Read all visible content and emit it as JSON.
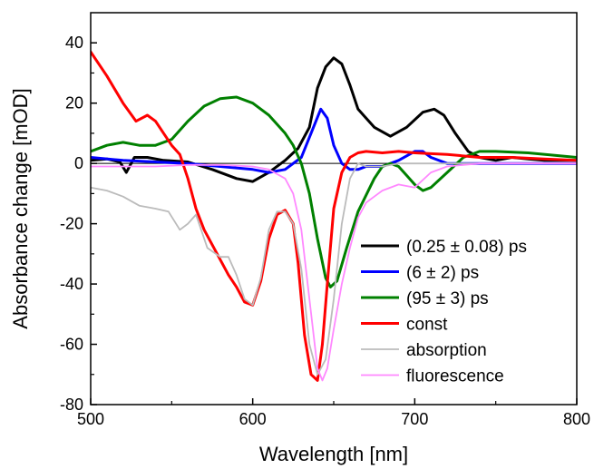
{
  "chart_data": {
    "type": "line",
    "xlabel": "Wavelength [nm]",
    "ylabel": "Absorbance change [mOD]",
    "xlim": [
      500,
      800
    ],
    "ylim": [
      -80,
      50
    ],
    "xticks": [
      500,
      600,
      700,
      800
    ],
    "xtick_labels": [
      "500",
      "600",
      "700",
      "800"
    ],
    "yticks": [
      -80,
      -60,
      -40,
      -20,
      0,
      20,
      40
    ],
    "ytick_labels": [
      "-80",
      "-60",
      "-40",
      "-20",
      "0",
      "20",
      "40"
    ],
    "zero_line": true,
    "grid": false,
    "legend_position": "bottom-right",
    "series": [
      {
        "name": "(0.25 ± 0.08) ps",
        "color": "#000000",
        "x": [
          500,
          510,
          518,
          522,
          527,
          535,
          545,
          560,
          575,
          590,
          600,
          610,
          620,
          628,
          635,
          640,
          645,
          650,
          655,
          660,
          665,
          675,
          685,
          695,
          705,
          712,
          718,
          725,
          733,
          740,
          750,
          760,
          770,
          780,
          790,
          800
        ],
        "y": [
          1,
          1.5,
          0.5,
          -3,
          2,
          2,
          1,
          0.5,
          -2,
          -5,
          -6,
          -3,
          1,
          5,
          12,
          25,
          32,
          35,
          33,
          26,
          18,
          12,
          9,
          12,
          17,
          18,
          16,
          10,
          4,
          2,
          1,
          2,
          1.5,
          1,
          1,
          1
        ]
      },
      {
        "name": "(6 ± 2) ps",
        "color": "#0000ff",
        "x": [
          500,
          520,
          540,
          560,
          580,
          600,
          610,
          620,
          630,
          636,
          642,
          646,
          650,
          655,
          660,
          665,
          670,
          680,
          690,
          700,
          705,
          710,
          720,
          730,
          740,
          760,
          780,
          800
        ],
        "y": [
          2,
          1,
          0.5,
          0,
          -1,
          -2,
          -3,
          -2,
          2,
          10,
          18,
          15,
          6,
          0,
          -2,
          -2,
          -1,
          -1,
          1,
          4,
          4,
          2,
          0,
          0,
          0,
          0,
          0,
          0
        ]
      },
      {
        "name": "(95 ± 3) ps",
        "color": "#008000",
        "x": [
          500,
          510,
          520,
          530,
          540,
          550,
          560,
          570,
          580,
          590,
          600,
          610,
          620,
          625,
          630,
          635,
          640,
          645,
          648,
          652,
          658,
          665,
          675,
          680,
          685,
          690,
          695,
          700,
          705,
          710,
          720,
          730,
          740,
          750,
          770,
          800
        ],
        "y": [
          4,
          6,
          7,
          6,
          6,
          8,
          14,
          19,
          21.5,
          22,
          20,
          16,
          10,
          6,
          0,
          -10,
          -25,
          -38,
          -41,
          -39,
          -28,
          -16,
          -5,
          -1,
          0,
          -1,
          -4,
          -7,
          -9,
          -8,
          -3,
          2,
          4,
          4,
          3.5,
          2
        ]
      },
      {
        "name": "const",
        "color": "#ff0000",
        "x": [
          500,
          510,
          520,
          528,
          535,
          540,
          545,
          550,
          555,
          560,
          565,
          570,
          578,
          585,
          590,
          595,
          600,
          605,
          610,
          615,
          620,
          625,
          628,
          632,
          636,
          640,
          643,
          646,
          650,
          655,
          660,
          665,
          670,
          680,
          690,
          700,
          720,
          740,
          760,
          780,
          800
        ],
        "y": [
          37,
          29,
          20,
          14,
          16,
          14,
          10,
          6,
          3,
          -5,
          -15,
          -22,
          -30,
          -37,
          -41,
          -46,
          -47,
          -39,
          -25,
          -17,
          -15.5,
          -20,
          -33,
          -57,
          -70,
          -72,
          -60,
          -40,
          -15,
          -3,
          2,
          3.5,
          4,
          3.5,
          4,
          3.5,
          3,
          2,
          2,
          1.5,
          1
        ]
      },
      {
        "name": "absorption",
        "color": "#bbbbbb",
        "x": [
          500,
          510,
          520,
          530,
          540,
          548,
          555,
          560,
          565,
          572,
          580,
          585,
          590,
          595,
          600,
          605,
          610,
          615,
          620,
          625,
          630,
          635,
          640,
          645,
          650,
          655,
          660,
          665,
          670,
          680,
          690,
          700,
          710,
          720,
          740,
          760,
          780,
          800
        ],
        "y": [
          -8,
          -9,
          -11,
          -14,
          -15,
          -16,
          -22,
          -20,
          -17,
          -28,
          -31,
          -31,
          -37,
          -45,
          -47,
          -38,
          -22,
          -16,
          -16,
          -20,
          -35,
          -60,
          -70,
          -65,
          -45,
          -20,
          -5,
          0,
          -1,
          -1,
          0,
          0,
          0,
          0,
          0,
          0,
          0,
          0
        ]
      },
      {
        "name": "fluorescence",
        "color": "#ff88ff",
        "x": [
          500,
          520,
          540,
          560,
          580,
          600,
          610,
          620,
          625,
          630,
          635,
          640,
          643,
          646,
          650,
          655,
          660,
          665,
          670,
          675,
          680,
          690,
          700,
          710,
          720,
          740,
          760,
          780,
          800
        ],
        "y": [
          -1,
          -1,
          -1,
          -0.5,
          -0.5,
          -1,
          -2,
          -5,
          -10,
          -22,
          -45,
          -68,
          -72,
          -68,
          -55,
          -40,
          -28,
          -18,
          -13,
          -11,
          -9,
          -7,
          -8,
          -3,
          -1,
          0,
          0,
          0,
          0
        ]
      }
    ]
  }
}
